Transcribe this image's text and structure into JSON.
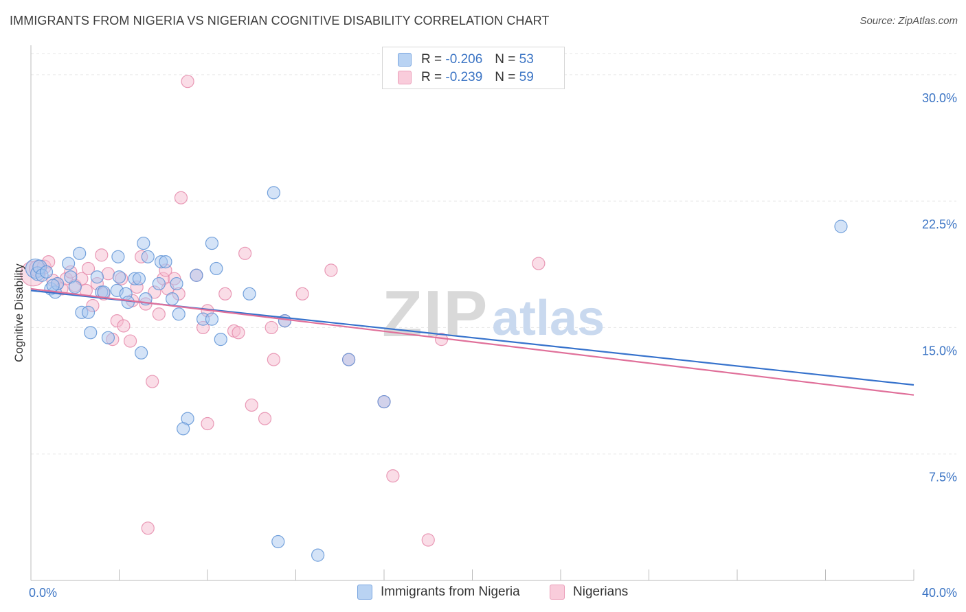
{
  "title": "IMMIGRANTS FROM NIGERIA VS NIGERIAN COGNITIVE DISABILITY CORRELATION CHART",
  "source": "Source: ZipAtlas.com",
  "watermark": {
    "zip": "ZIP",
    "atlas": "atlas"
  },
  "colors": {
    "blue_fill": "#a9c8f0",
    "blue_stroke": "#5e93d6",
    "blue_line": "#3672cc",
    "pink_fill": "#f6bcd0",
    "pink_stroke": "#e58aaa",
    "pink_line": "#e0709a",
    "tick_text": "#3b74c4",
    "grid": "#e6e6e6"
  },
  "legend": {
    "rows": [
      {
        "r_label": "R =",
        "r_value": "-0.206",
        "n_label": "N =",
        "n_value": "53"
      },
      {
        "r_label": "R =",
        "r_value": "-0.239",
        "n_label": "N =",
        "n_value": "59"
      }
    ]
  },
  "chart_data": {
    "type": "scatter",
    "title": "IMMIGRANTS FROM NIGERIA VS NIGERIAN COGNITIVE DISABILITY CORRELATION CHART",
    "xlabel": "",
    "ylabel": "Cognitive Disability",
    "xlim": [
      0,
      40
    ],
    "ylim": [
      0,
      31.5
    ],
    "x_tick_labels": [
      "0.0%",
      "40.0%"
    ],
    "y_ticks": [
      7.5,
      15.0,
      22.5,
      30.0
    ],
    "y_tick_labels": [
      "7.5%",
      "15.0%",
      "22.5%",
      "30.0%"
    ],
    "grid": true,
    "legend_position": "bottom-center",
    "series": [
      {
        "name": "Immigrants from Nigeria",
        "color": "blue",
        "trend": {
          "x": [
            0,
            40
          ],
          "y": [
            17.2,
            11.6
          ]
        },
        "points": [
          [
            0.2,
            18.5,
            14
          ],
          [
            0.3,
            18.2,
            10
          ],
          [
            0.4,
            18.6,
            10
          ],
          [
            0.5,
            18.1,
            9
          ],
          [
            0.7,
            18.3,
            9
          ],
          [
            0.9,
            17.3,
            9
          ],
          [
            1.1,
            17.1,
            9
          ],
          [
            1.2,
            17.6,
            9
          ],
          [
            1.7,
            18.8,
            9
          ],
          [
            1.8,
            18.0,
            9
          ],
          [
            2.2,
            19.4,
            9
          ],
          [
            2.3,
            15.9,
            9
          ],
          [
            2.6,
            15.9,
            9
          ],
          [
            2.7,
            14.7,
            9
          ],
          [
            3.0,
            18.0,
            9
          ],
          [
            3.2,
            17.1,
            9
          ],
          [
            3.3,
            17.1,
            9
          ],
          [
            3.5,
            14.4,
            9
          ],
          [
            3.9,
            17.2,
            9
          ],
          [
            3.95,
            19.2,
            9
          ],
          [
            4.0,
            18.0,
            9
          ],
          [
            4.3,
            17.0,
            9
          ],
          [
            4.4,
            16.5,
            9
          ],
          [
            4.7,
            17.9,
            9
          ],
          [
            4.9,
            17.9,
            9
          ],
          [
            5.0,
            13.5,
            9
          ],
          [
            5.1,
            20.0,
            9
          ],
          [
            5.2,
            16.7,
            9
          ],
          [
            5.3,
            19.2,
            9
          ],
          [
            5.8,
            17.6,
            9
          ],
          [
            5.9,
            18.9,
            9
          ],
          [
            6.1,
            18.9,
            9
          ],
          [
            6.4,
            16.7,
            9
          ],
          [
            6.6,
            17.6,
            9
          ],
          [
            6.7,
            15.8,
            9
          ],
          [
            7.1,
            9.6,
            9
          ],
          [
            6.9,
            9.0,
            9
          ],
          [
            7.5,
            18.1,
            9
          ],
          [
            7.8,
            15.5,
            9
          ],
          [
            8.2,
            15.5,
            9
          ],
          [
            8.2,
            20.0,
            9
          ],
          [
            8.4,
            18.5,
            9
          ],
          [
            8.6,
            14.3,
            9
          ],
          [
            9.9,
            17.0,
            9
          ],
          [
            11.0,
            23.0,
            9
          ],
          [
            11.5,
            15.4,
            9
          ],
          [
            11.2,
            2.3,
            9
          ],
          [
            13.0,
            1.5,
            9
          ],
          [
            14.4,
            13.1,
            9
          ],
          [
            16.0,
            10.6,
            9
          ],
          [
            36.7,
            21.0,
            9
          ],
          [
            1.0,
            17.5,
            9
          ],
          [
            2.0,
            17.4,
            9
          ]
        ]
      },
      {
        "name": "Nigerians",
        "color": "pink",
        "trend": {
          "x": [
            0,
            40
          ],
          "y": [
            17.3,
            11.0
          ]
        },
        "points": [
          [
            0.1,
            18.2,
            18
          ],
          [
            0.3,
            18.5,
            12
          ],
          [
            0.6,
            18.6,
            10
          ],
          [
            0.8,
            18.9,
            9
          ],
          [
            1.0,
            17.8,
            9
          ],
          [
            1.2,
            17.6,
            9
          ],
          [
            1.4,
            17.3,
            9
          ],
          [
            1.6,
            17.9,
            9
          ],
          [
            2.0,
            17.5,
            9
          ],
          [
            2.3,
            17.9,
            9
          ],
          [
            2.6,
            18.5,
            9
          ],
          [
            2.8,
            16.3,
            9
          ],
          [
            3.0,
            17.6,
            9
          ],
          [
            3.2,
            19.3,
            9
          ],
          [
            3.3,
            17.0,
            9
          ],
          [
            3.5,
            18.2,
            9
          ],
          [
            3.7,
            14.3,
            9
          ],
          [
            3.9,
            15.4,
            9
          ],
          [
            4.1,
            17.9,
            9
          ],
          [
            4.2,
            15.1,
            9
          ],
          [
            4.5,
            14.2,
            9
          ],
          [
            4.8,
            17.4,
            9
          ],
          [
            5.0,
            19.2,
            9
          ],
          [
            5.2,
            16.4,
            9
          ],
          [
            5.3,
            3.1,
            9
          ],
          [
            5.5,
            11.8,
            9
          ],
          [
            5.6,
            17.1,
            9
          ],
          [
            5.8,
            15.8,
            9
          ],
          [
            6.0,
            17.9,
            9
          ],
          [
            6.1,
            18.4,
            9
          ],
          [
            6.2,
            17.3,
            9
          ],
          [
            6.5,
            17.9,
            9
          ],
          [
            6.7,
            17.0,
            9
          ],
          [
            6.8,
            22.7,
            9
          ],
          [
            7.1,
            29.6,
            9
          ],
          [
            7.5,
            18.1,
            9
          ],
          [
            7.8,
            15.0,
            9
          ],
          [
            8.0,
            16.0,
            9
          ],
          [
            8.0,
            9.3,
            9
          ],
          [
            8.8,
            17.0,
            9
          ],
          [
            9.2,
            14.8,
            9
          ],
          [
            9.4,
            14.7,
            9
          ],
          [
            9.7,
            19.4,
            9
          ],
          [
            10.0,
            10.4,
            9
          ],
          [
            10.6,
            9.6,
            9
          ],
          [
            10.9,
            15.0,
            9
          ],
          [
            11.0,
            13.1,
            9
          ],
          [
            11.5,
            15.4,
            9
          ],
          [
            12.3,
            17.0,
            9
          ],
          [
            13.6,
            18.4,
            9
          ],
          [
            14.4,
            13.1,
            9
          ],
          [
            16.0,
            10.6,
            9
          ],
          [
            16.4,
            6.2,
            9
          ],
          [
            18.0,
            2.4,
            9
          ],
          [
            18.6,
            14.3,
            9
          ],
          [
            23.0,
            18.8,
            9
          ],
          [
            2.5,
            17.2,
            9
          ],
          [
            4.6,
            16.6,
            9
          ],
          [
            1.8,
            18.3,
            9
          ]
        ]
      }
    ]
  }
}
